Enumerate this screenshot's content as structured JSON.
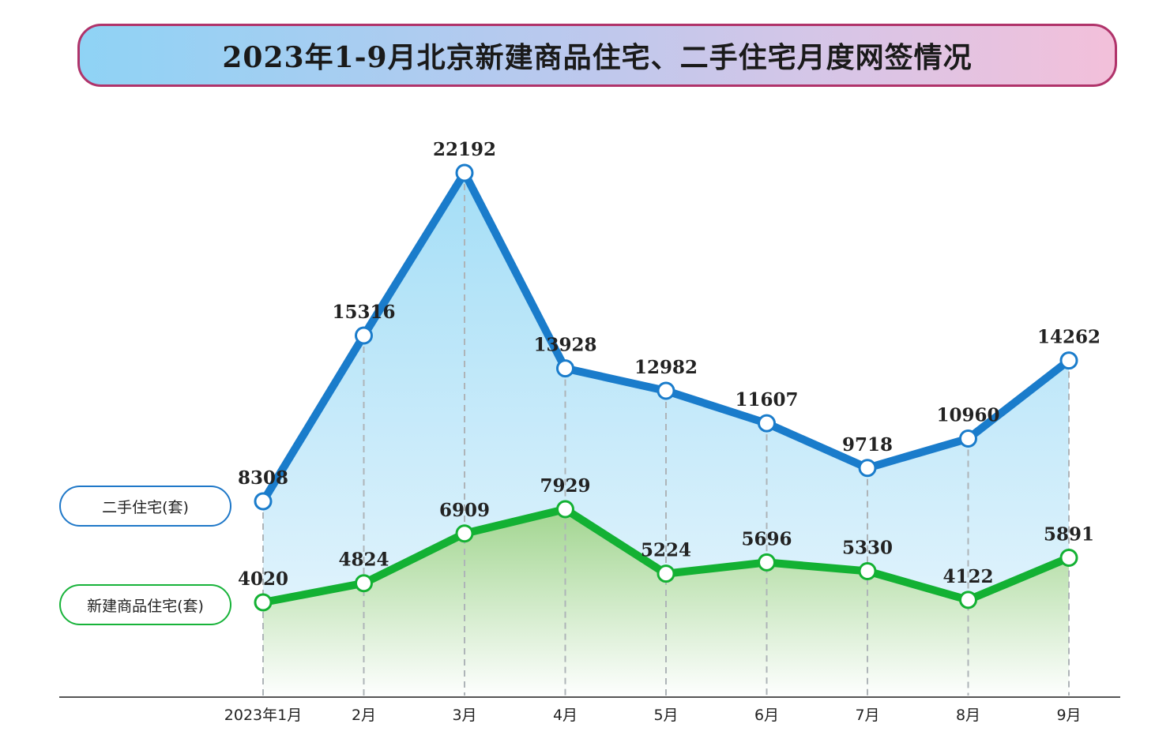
{
  "title": "2023年1-9月北京新建商品住宅、二手住宅月度网签情况",
  "colors": {
    "second_hand": "#1a7ccb",
    "new_homes": "#13b133",
    "banner_border": "#b0336a"
  },
  "chart_data": {
    "type": "line",
    "categories": [
      "2023年1月",
      "2月",
      "3月",
      "4月",
      "5月",
      "6月",
      "7月",
      "8月",
      "9月"
    ],
    "series": [
      {
        "name": "二手住宅(套)",
        "values": [
          8308,
          15316,
          22192,
          13928,
          12982,
          11607,
          9718,
          10960,
          14262
        ]
      },
      {
        "name": "新建商品住宅(套)",
        "values": [
          4020,
          4824,
          6909,
          7929,
          5224,
          5696,
          5330,
          4122,
          5891
        ]
      }
    ],
    "data_labels": true,
    "grid": false,
    "legend_placement": "left"
  }
}
